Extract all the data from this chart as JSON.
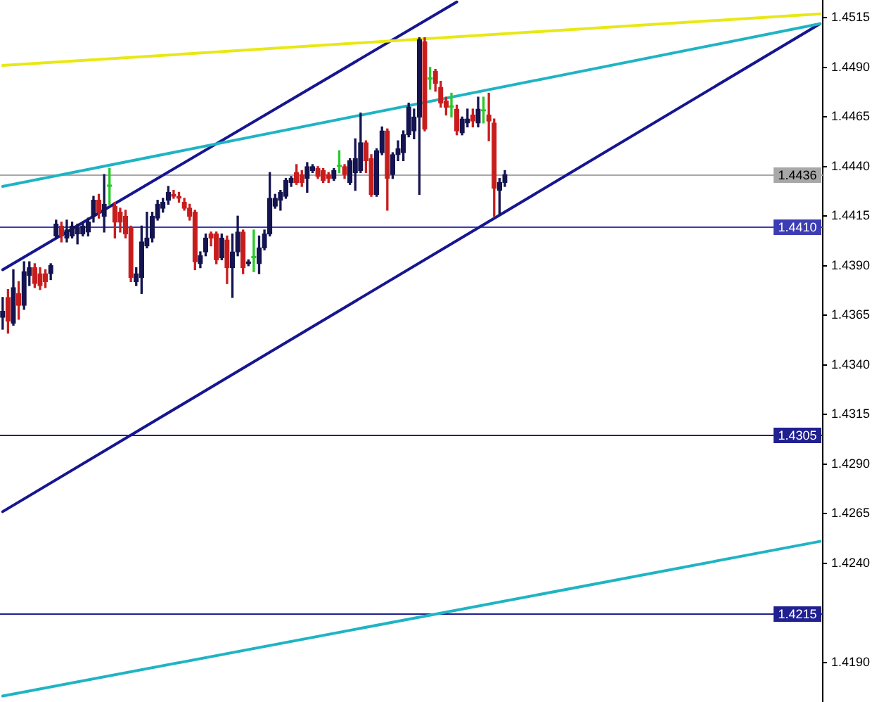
{
  "chart_data": {
    "type": "candlestick",
    "categories": [
      null,
      null,
      null,
      null,
      null,
      null,
      null,
      null,
      null,
      null,
      null,
      null,
      null,
      null,
      null,
      null,
      null,
      null,
      null,
      null,
      null,
      null,
      null,
      null,
      null,
      null,
      null,
      null,
      null,
      null,
      null,
      null,
      null,
      null,
      null,
      null,
      null,
      null,
      null,
      null,
      null,
      null,
      null,
      null,
      null,
      null,
      null,
      null,
      null,
      null,
      null,
      null,
      null,
      null,
      null,
      null,
      null,
      null,
      null,
      null,
      null,
      null,
      null,
      null,
      null,
      null,
      null,
      null,
      null,
      null,
      null,
      null,
      null,
      null,
      null,
      null,
      null,
      null,
      null,
      null,
      null,
      null,
      null,
      null,
      null,
      null,
      null,
      null,
      null,
      null,
      null,
      null,
      null,
      null,
      null,
      null,
      null,
      null,
      null,
      null,
      null,
      null,
      null,
      null,
      null,
      null,
      null,
      null,
      null,
      null,
      null,
      null,
      null,
      null,
      null,
      null,
      null,
      null,
      null,
      null,
      null,
      null,
      null,
      null,
      null,
      null,
      null,
      null,
      null,
      null,
      null,
      null,
      null,
      null,
      null,
      null,
      null,
      null,
      null,
      null,
      null,
      null,
      null,
      null,
      null,
      null,
      null,
      null,
      null,
      null,
      null,
      null,
      null,
      null
    ],
    "ohlc": [
      [
        1.4364,
        1.4374,
        1.4358,
        1.4367
      ],
      [
        1.4374,
        1.4378,
        1.4356,
        1.4362
      ],
      [
        1.4361,
        1.4388,
        1.436,
        1.4379
      ],
      [
        1.4376,
        1.4382,
        1.4363,
        1.437
      ],
      [
        1.437,
        1.4392,
        1.4368,
        1.4387
      ],
      [
        1.4385,
        1.4392,
        1.438,
        1.4389
      ],
      [
        1.4389,
        1.4391,
        1.4379,
        1.4381
      ],
      [
        1.4386,
        1.4389,
        1.4378,
        1.438
      ],
      [
        1.4386,
        1.4388,
        1.4379,
        1.4382
      ],
      [
        1.4386,
        1.4391,
        1.4383,
        1.439
      ],
      [
        1.4405,
        1.4413,
        1.4404,
        1.4411
      ],
      [
        1.441,
        1.4412,
        1.4402,
        1.4405
      ],
      [
        1.4404,
        1.4413,
        1.4402,
        1.4408
      ],
      [
        1.4405,
        1.4412,
        1.4404,
        1.441
      ],
      [
        1.4406,
        1.4411,
        1.4401,
        1.4409
      ],
      [
        1.4406,
        1.4412,
        1.4405,
        1.441
      ],
      [
        1.4407,
        1.4414,
        1.4405,
        1.4412
      ],
      [
        1.4415,
        1.4425,
        1.4412,
        1.4423
      ],
      [
        1.4423,
        1.4426,
        1.4414,
        1.4417
      ],
      [
        1.4415,
        1.4436,
        1.4407,
        1.4421
      ],
      [
        1.443,
        1.4439,
        1.4421,
        1.443
      ],
      [
        1.442,
        1.4422,
        1.4404,
        1.4412
      ],
      [
        1.4417,
        1.4419,
        1.4407,
        1.4412
      ],
      [
        1.4415,
        1.4418,
        1.4404,
        1.4406
      ],
      [
        1.4409,
        1.441,
        1.4382,
        1.4384
      ],
      [
        1.4382,
        1.4389,
        1.438,
        1.4386
      ],
      [
        1.4384,
        1.441,
        1.4376,
        1.4402
      ],
      [
        1.44,
        1.4417,
        1.4399,
        1.4404
      ],
      [
        1.4404,
        1.4417,
        1.4402,
        1.4415
      ],
      [
        1.4414,
        1.4423,
        1.4413,
        1.4421
      ],
      [
        1.4419,
        1.4424,
        1.4417,
        1.4422
      ],
      [
        1.4423,
        1.443,
        1.4421,
        1.4427
      ],
      [
        1.4426,
        1.4428,
        1.4424,
        1.4425
      ],
      [
        1.4425,
        1.4427,
        1.4422,
        1.4424
      ],
      [
        1.4422,
        1.4424,
        1.4418,
        1.4419
      ],
      [
        1.4419,
        1.4421,
        1.4413,
        1.4415
      ],
      [
        1.4417,
        1.4418,
        1.4388,
        1.4392
      ],
      [
        1.4391,
        1.4397,
        1.4389,
        1.4395
      ],
      [
        1.4397,
        1.4406,
        1.4395,
        1.4404
      ],
      [
        1.4406,
        1.4407,
        1.44,
        1.4404
      ],
      [
        1.4406,
        1.4407,
        1.4391,
        1.4393
      ],
      [
        1.4394,
        1.4406,
        1.4393,
        1.4404
      ],
      [
        1.4403,
        1.4405,
        1.4381,
        1.4389
      ],
      [
        1.4389,
        1.4406,
        1.4374,
        1.4397
      ],
      [
        1.4397,
        1.4415,
        1.4395,
        1.4407
      ],
      [
        1.4407,
        1.4408,
        1.4386,
        1.4389
      ],
      [
        1.4391,
        1.4393,
        1.439,
        1.4392
      ],
      [
        1.4394,
        1.4408,
        1.4387,
        1.4394
      ],
      [
        1.4391,
        1.4405,
        1.4386,
        1.4399
      ],
      [
        1.4399,
        1.4408,
        1.4398,
        1.4406
      ],
      [
        1.4406,
        1.4437,
        1.4405,
        1.4424
      ],
      [
        1.442,
        1.4426,
        1.4419,
        1.4424
      ],
      [
        1.4423,
        1.4428,
        1.4418,
        1.4427
      ],
      [
        1.4425,
        1.4434,
        1.4424,
        1.4433
      ],
      [
        1.4432,
        1.4435,
        1.443,
        1.4434
      ],
      [
        1.4437,
        1.4441,
        1.4431,
        1.4432
      ],
      [
        1.4436,
        1.4438,
        1.443,
        1.4432
      ],
      [
        1.4434,
        1.4442,
        1.4427,
        1.444
      ],
      [
        1.4438,
        1.4441,
        1.4437,
        1.444
      ],
      [
        1.4439,
        1.444,
        1.4434,
        1.4435
      ],
      [
        1.4438,
        1.4439,
        1.4432,
        1.4433
      ],
      [
        1.4436,
        1.4437,
        1.4432,
        1.4434
      ],
      [
        1.4434,
        1.4439,
        1.4433,
        1.4438
      ],
      [
        1.444,
        1.4448,
        1.4437,
        1.444
      ],
      [
        1.444,
        1.4441,
        1.4434,
        1.4436
      ],
      [
        1.4432,
        1.4444,
        1.4431,
        1.4443
      ],
      [
        1.4437,
        1.4454,
        1.4428,
        1.4444
      ],
      [
        1.4438,
        1.4467,
        1.4437,
        1.4452
      ],
      [
        1.4452,
        1.4453,
        1.4437,
        1.4443
      ],
      [
        1.4444,
        1.4446,
        1.4425,
        1.4426
      ],
      [
        1.4426,
        1.4449,
        1.4425,
        1.4448
      ],
      [
        1.4447,
        1.446,
        1.4446,
        1.4458
      ],
      [
        1.4458,
        1.4459,
        1.4418,
        1.4434
      ],
      [
        1.4436,
        1.4447,
        1.4434,
        1.4446
      ],
      [
        1.4446,
        1.4453,
        1.4443,
        1.4449
      ],
      [
        1.4447,
        1.4458,
        1.4443,
        1.4456
      ],
      [
        1.4456,
        1.4472,
        1.4455,
        1.447
      ],
      [
        1.4458,
        1.4469,
        1.4454,
        1.4465
      ],
      [
        1.4465,
        1.4505,
        1.4426,
        1.4504
      ],
      [
        1.4503,
        1.4505,
        1.4458,
        1.4459
      ],
      [
        1.4484,
        1.449,
        1.4479,
        1.4484
      ],
      [
        1.4488,
        1.4489,
        1.4478,
        1.4482
      ],
      [
        1.448,
        1.4483,
        1.447,
        1.4472
      ],
      [
        1.4473,
        1.4475,
        1.4466,
        1.447
      ],
      [
        1.447,
        1.4477,
        1.4465,
        1.447
      ],
      [
        1.4469,
        1.4471,
        1.4456,
        1.4458
      ],
      [
        1.4457,
        1.4465,
        1.4456,
        1.4464
      ],
      [
        1.4462,
        1.4469,
        1.446,
        1.4464
      ],
      [
        1.4466,
        1.4469,
        1.446,
        1.4463
      ],
      [
        1.4462,
        1.4475,
        1.446,
        1.4469
      ],
      [
        1.4468,
        1.4475,
        1.4462,
        1.4468
      ],
      [
        1.4466,
        1.4477,
        1.4453,
        1.4463
      ],
      [
        1.4462,
        1.4464,
        1.4415,
        1.4429
      ],
      [
        1.4428,
        1.4434,
        1.4416,
        1.4432
      ],
      [
        1.4432,
        1.4438,
        1.443,
        1.4436
      ],
      null,
      null,
      null,
      null,
      null,
      null,
      null,
      null,
      null,
      null,
      null,
      null,
      null,
      null,
      null,
      null,
      null,
      null,
      null,
      null,
      null,
      null,
      null,
      null,
      null,
      null,
      null,
      null,
      null,
      null,
      null,
      null,
      null,
      null,
      null,
      null,
      null,
      null,
      null,
      null,
      null,
      null,
      null,
      null,
      null,
      null,
      null,
      null,
      null,
      null,
      null,
      null,
      null,
      null,
      null,
      null,
      null,
      null,
      null
    ],
    "colors": [
      "#141450",
      "#c81e1e",
      "#141450",
      "#c81e1e",
      "#141450",
      "#141450",
      "#c81e1e",
      "#c81e1e",
      "#c81e1e",
      "#141450",
      "#141450",
      "#c81e1e",
      "#141450",
      "#141450",
      "#141450",
      "#141450",
      "#141450",
      "#141450",
      "#c81e1e",
      "#141450",
      "#28c828",
      "#c81e1e",
      "#c81e1e",
      "#c81e1e",
      "#c81e1e",
      "#141450",
      "#141450",
      "#141450",
      "#141450",
      "#141450",
      "#141450",
      "#141450",
      "#c81e1e",
      "#c81e1e",
      "#c81e1e",
      "#c81e1e",
      "#c81e1e",
      "#141450",
      "#141450",
      "#c81e1e",
      "#c81e1e",
      "#141450",
      "#c81e1e",
      "#141450",
      "#141450",
      "#c81e1e",
      "#141450",
      "#28c828",
      "#141450",
      "#141450",
      "#141450",
      "#141450",
      "#141450",
      "#141450",
      "#141450",
      "#c81e1e",
      "#c81e1e",
      "#141450",
      "#141450",
      "#c81e1e",
      "#c81e1e",
      "#c81e1e",
      "#141450",
      "#28c828",
      "#c81e1e",
      "#141450",
      "#141450",
      "#141450",
      "#c81e1e",
      "#c81e1e",
      "#141450",
      "#141450",
      "#c81e1e",
      "#141450",
      "#141450",
      "#141450",
      "#141450",
      "#141450",
      "#141450",
      "#c81e1e",
      "#28c828",
      "#c81e1e",
      "#c81e1e",
      "#c81e1e",
      "#28c828",
      "#c81e1e",
      "#141450",
      "#141450",
      "#c81e1e",
      "#141450",
      "#28c828",
      "#c81e1e",
      "#c81e1e",
      "#141450",
      "#141450",
      null,
      null,
      null,
      null,
      null,
      null,
      null,
      null,
      null,
      null,
      null,
      null,
      null,
      null,
      null,
      null,
      null,
      null,
      null,
      null,
      null,
      null,
      null,
      null,
      null,
      null,
      null,
      null,
      null,
      null,
      null,
      null,
      null,
      null,
      null,
      null,
      null,
      null,
      null,
      null,
      null,
      null,
      null,
      null,
      null,
      null,
      null,
      null,
      null,
      null,
      null,
      null,
      null,
      null,
      null,
      null,
      null,
      null,
      null
    ],
    "series": [
      {
        "type": "line",
        "color": "#e8e814",
        "values": [
          1.4491,
          null,
          null,
          null,
          null,
          null,
          null,
          null,
          null,
          null,
          null,
          null,
          null,
          null,
          null,
          null,
          null,
          null,
          null,
          null,
          null,
          null,
          null,
          null,
          null,
          null,
          null,
          null,
          null,
          null,
          null,
          null,
          null,
          null,
          null,
          null,
          null,
          null,
          null,
          null,
          null,
          null,
          null,
          null,
          null,
          null,
          null,
          null,
          null,
          null,
          null,
          null,
          null,
          null,
          null,
          null,
          null,
          null,
          null,
          null,
          null,
          null,
          null,
          null,
          null,
          null,
          null,
          null,
          null,
          null,
          null,
          null,
          null,
          null,
          null,
          null,
          null,
          null,
          null,
          null,
          null,
          null,
          null,
          null,
          null,
          null,
          null,
          null,
          null,
          null,
          null,
          null,
          null,
          null,
          null,
          null,
          null,
          null,
          null,
          null,
          null,
          null,
          null,
          null,
          null,
          null,
          null,
          null,
          null,
          null,
          null,
          null,
          null,
          null,
          null,
          null,
          null,
          null,
          null,
          null,
          null,
          null,
          null,
          null,
          null,
          null,
          null,
          null,
          null,
          null,
          null,
          null,
          null,
          null,
          null,
          null,
          null,
          null,
          null,
          null,
          null,
          null,
          null,
          null,
          null,
          null,
          null,
          null,
          null,
          null,
          null,
          null,
          null,
          1.4517
        ]
      },
      {
        "type": "line",
        "color": "#1fb4c4",
        "values": [
          1.443,
          null,
          null,
          null,
          null,
          null,
          null,
          null,
          null,
          null,
          null,
          null,
          null,
          null,
          null,
          null,
          null,
          null,
          null,
          null,
          null,
          null,
          null,
          null,
          null,
          null,
          null,
          null,
          null,
          null,
          null,
          null,
          null,
          null,
          null,
          null,
          null,
          null,
          null,
          null,
          null,
          null,
          null,
          null,
          null,
          null,
          null,
          null,
          null,
          null,
          null,
          null,
          null,
          null,
          null,
          null,
          null,
          null,
          null,
          null,
          null,
          null,
          null,
          null,
          null,
          null,
          null,
          null,
          null,
          null,
          null,
          null,
          null,
          null,
          null,
          null,
          null,
          null,
          null,
          null,
          null,
          null,
          null,
          null,
          null,
          null,
          null,
          null,
          null,
          null,
          null,
          null,
          null,
          null,
          null,
          null,
          null,
          null,
          null,
          null,
          null,
          null,
          null,
          null,
          null,
          null,
          null,
          null,
          null,
          null,
          null,
          null,
          null,
          null,
          null,
          null,
          null,
          null,
          null,
          null,
          null,
          null,
          null,
          null,
          null,
          null,
          null,
          null,
          null,
          null,
          null,
          null,
          null,
          null,
          null,
          null,
          null,
          null,
          null,
          null,
          null,
          null,
          null,
          null,
          null,
          null,
          null,
          null,
          null,
          null,
          null,
          null,
          null,
          1.4512
        ]
      },
      {
        "type": "line",
        "color": "#161690",
        "values": [
          1.4388,
          null,
          null,
          null,
          null,
          null,
          null,
          null,
          null,
          null,
          null,
          null,
          null,
          null,
          null,
          null,
          null,
          null,
          null,
          null,
          null,
          null,
          null,
          null,
          null,
          null,
          null,
          null,
          null,
          null,
          null,
          null,
          null,
          null,
          null,
          null,
          null,
          null,
          null,
          null,
          null,
          null,
          null,
          null,
          null,
          null,
          null,
          null,
          null,
          null,
          null,
          null,
          null,
          null,
          null,
          null,
          null,
          null,
          null,
          null,
          null,
          null,
          null,
          null,
          null,
          null,
          null,
          null,
          null,
          null,
          null,
          null,
          null,
          null,
          null,
          null,
          null,
          null,
          null,
          null,
          null,
          null,
          null,
          null,
          null,
          1.4523,
          null,
          null,
          null,
          null,
          null,
          null,
          null,
          null,
          null,
          null,
          null,
          null,
          null,
          null,
          null,
          null,
          null,
          null,
          null,
          null,
          null,
          null,
          null,
          null,
          null,
          null,
          null,
          null,
          null,
          null,
          null,
          null,
          null,
          null,
          null,
          null,
          null,
          null,
          null,
          null,
          null,
          null,
          null,
          null,
          null,
          null,
          null,
          null,
          null,
          null,
          null,
          null,
          null,
          null,
          null,
          null,
          null,
          null,
          null,
          null,
          null,
          null,
          null,
          null,
          null,
          null,
          null,
          null
        ]
      },
      {
        "type": "line",
        "color": "#161690",
        "values": [
          1.4266,
          null,
          null,
          null,
          null,
          null,
          null,
          null,
          null,
          null,
          null,
          null,
          null,
          null,
          null,
          null,
          null,
          null,
          null,
          null,
          null,
          null,
          null,
          null,
          null,
          null,
          null,
          null,
          null,
          null,
          null,
          null,
          null,
          null,
          null,
          null,
          null,
          null,
          null,
          null,
          null,
          null,
          null,
          null,
          null,
          null,
          null,
          null,
          null,
          null,
          null,
          null,
          null,
          null,
          null,
          null,
          null,
          null,
          null,
          null,
          null,
          null,
          null,
          null,
          null,
          null,
          null,
          null,
          null,
          null,
          null,
          null,
          null,
          null,
          null,
          null,
          null,
          null,
          null,
          null,
          null,
          null,
          null,
          null,
          null,
          null,
          null,
          null,
          null,
          null,
          null,
          null,
          null,
          null,
          null,
          null,
          null,
          null,
          null,
          null,
          null,
          null,
          null,
          null,
          null,
          null,
          null,
          null,
          null,
          null,
          null,
          null,
          null,
          null,
          null,
          null,
          null,
          null,
          null,
          null,
          null,
          null,
          null,
          null,
          null,
          null,
          null,
          null,
          null,
          null,
          null,
          null,
          null,
          null,
          null,
          null,
          null,
          null,
          null,
          null,
          null,
          null,
          null,
          null,
          null,
          null,
          null,
          null,
          null,
          null,
          null,
          null,
          null,
          1.4512
        ]
      },
      {
        "type": "line",
        "color": "#1fb4c4",
        "values": [
          1.4173,
          null,
          null,
          null,
          null,
          null,
          null,
          null,
          null,
          null,
          null,
          null,
          null,
          null,
          null,
          null,
          null,
          null,
          null,
          null,
          null,
          null,
          null,
          null,
          null,
          null,
          null,
          null,
          null,
          null,
          null,
          null,
          null,
          null,
          null,
          null,
          null,
          null,
          null,
          null,
          null,
          null,
          null,
          null,
          null,
          null,
          null,
          null,
          null,
          null,
          null,
          null,
          null,
          null,
          null,
          null,
          null,
          null,
          null,
          null,
          null,
          null,
          null,
          null,
          null,
          null,
          null,
          null,
          null,
          null,
          null,
          null,
          null,
          null,
          null,
          null,
          null,
          null,
          null,
          null,
          null,
          null,
          null,
          null,
          null,
          null,
          null,
          null,
          null,
          null,
          null,
          null,
          null,
          null,
          null,
          null,
          null,
          null,
          null,
          null,
          null,
          null,
          null,
          null,
          null,
          null,
          null,
          null,
          null,
          null,
          null,
          null,
          null,
          null,
          null,
          null,
          null,
          null,
          null,
          null,
          null,
          null,
          null,
          null,
          null,
          null,
          null,
          null,
          null,
          null,
          null,
          null,
          null,
          null,
          null,
          null,
          null,
          null,
          null,
          null,
          null,
          null,
          null,
          null,
          null,
          null,
          null,
          null,
          null,
          null,
          null,
          null,
          null,
          1.4251
        ]
      }
    ],
    "ylim": [
      1.417,
      1.4524
    ],
    "yticks": [
      1.4515,
      {
        "value": 1.449,
        "label": "1.4490"
      },
      1.4465,
      {
        "value": 1.444,
        "label": "1.4440"
      },
      1.4415,
      {
        "value": 1.439,
        "label": "1.4390"
      },
      1.4365,
      {
        "value": 1.434,
        "label": "1.4340"
      },
      1.4315,
      {
        "value": 1.429,
        "label": "1.4290"
      },
      1.4265,
      {
        "value": 1.424,
        "label": "1.4240"
      },
      {
        "value": 1.419,
        "label": "1.4190"
      }
    ],
    "ref_lines": [
      {
        "axis": "y",
        "value": 1.4436,
        "label": "1.4436",
        "color": "#a8a8a8"
      },
      {
        "axis": "y",
        "value": 1.441,
        "label": "1.4410",
        "color": "#3c3cb4"
      },
      {
        "axis": "y",
        "value": 1.4305,
        "label": "1.4305",
        "color": "#202090"
      },
      {
        "axis": "y",
        "value": 1.4215,
        "label": "1.4215",
        "color": "#202090"
      }
    ],
    "tick_labels": "y",
    "legend": false,
    "grid": false
  }
}
